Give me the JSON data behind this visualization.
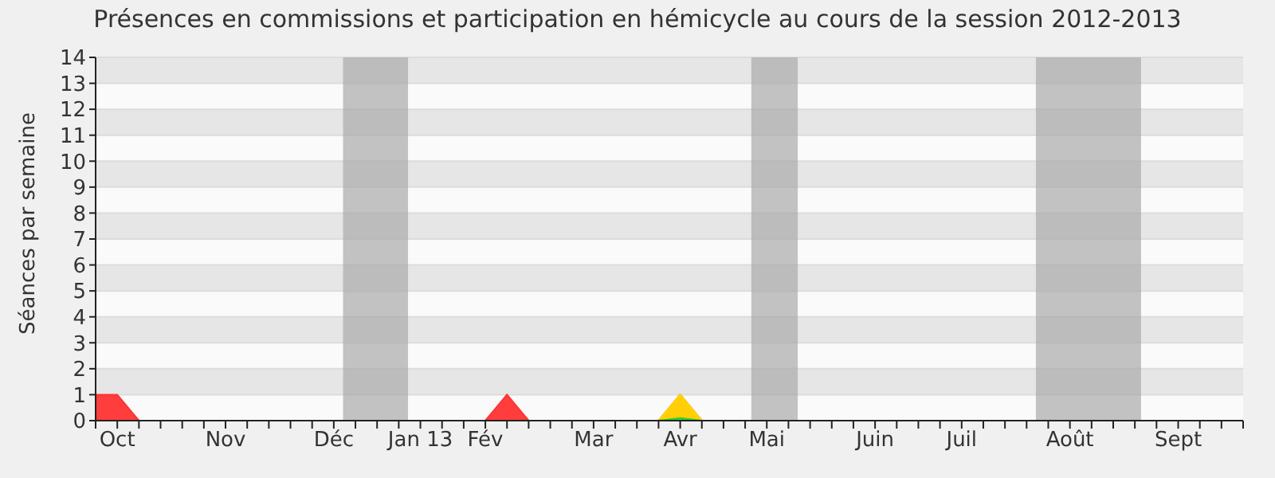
{
  "chart_data": {
    "type": "area",
    "title": "Présences en commissions et participation en hémicycle au cours de la session 2012-2013",
    "ylabel": "Séances par semaine",
    "x": [
      "2012-09-24",
      "2012-10-01",
      "2012-10-08",
      "2012-10-15",
      "2012-10-22",
      "2012-10-29",
      "2012-11-05",
      "2012-11-12",
      "2012-11-19",
      "2012-11-26",
      "2012-12-03",
      "2012-12-10",
      "2012-12-17",
      "2012-12-24",
      "2012-12-31",
      "2013-01-07",
      "2013-01-14",
      "2013-01-21",
      "2013-01-28",
      "2013-02-04",
      "2013-02-11",
      "2013-02-18",
      "2013-02-25",
      "2013-03-04",
      "2013-03-11",
      "2013-03-18",
      "2013-03-25",
      "2013-04-01",
      "2013-04-08",
      "2013-04-15",
      "2013-04-22",
      "2013-04-29",
      "2013-05-06",
      "2013-05-13",
      "2013-05-20",
      "2013-05-27",
      "2013-06-03",
      "2013-06-10",
      "2013-06-17",
      "2013-06-24",
      "2013-07-01",
      "2013-07-08",
      "2013-07-15",
      "2013-07-22",
      "2013-07-29",
      "2013-08-05",
      "2013-08-12",
      "2013-08-19",
      "2013-08-26",
      "2013-09-02",
      "2013-09-09",
      "2013-09-16",
      "2013-09-23",
      "2013-09-30"
    ],
    "series": [
      {
        "color": "#ff3333",
        "values": [
          1,
          1,
          0,
          0,
          0,
          0,
          0,
          0,
          0,
          0,
          0,
          0,
          0,
          0,
          0,
          0,
          0,
          0,
          0,
          1,
          0,
          0,
          0,
          0,
          0,
          0,
          0,
          1,
          0,
          0,
          0,
          0,
          0,
          0,
          0,
          0,
          0,
          0,
          0,
          0,
          0,
          0,
          0,
          0,
          0,
          0,
          0,
          0,
          0,
          0,
          0,
          0,
          0,
          0
        ]
      },
      {
        "color": "#ffd700",
        "values": [
          null,
          null,
          null,
          null,
          null,
          null,
          null,
          null,
          null,
          null,
          null,
          null,
          null,
          null,
          null,
          null,
          null,
          null,
          null,
          null,
          null,
          null,
          null,
          null,
          null,
          null,
          0,
          1,
          0,
          null,
          null,
          null,
          null,
          null,
          null,
          null,
          null,
          null,
          null,
          null,
          null,
          null,
          null,
          null,
          null,
          null,
          null,
          null,
          null,
          null,
          null,
          null,
          null,
          null
        ]
      },
      {
        "color": "#33cc33",
        "values": [
          null,
          null,
          null,
          null,
          null,
          null,
          null,
          null,
          null,
          null,
          null,
          null,
          null,
          null,
          null,
          null,
          null,
          null,
          null,
          null,
          null,
          null,
          null,
          null,
          null,
          null,
          0,
          0.1,
          0,
          null,
          null,
          null,
          null,
          null,
          null,
          null,
          null,
          null,
          null,
          null,
          null,
          null,
          null,
          null,
          null,
          null,
          null,
          null,
          null,
          null,
          null,
          null,
          null,
          null
        ]
      }
    ],
    "xlim": [
      "2012-09-24",
      "2013-09-30"
    ],
    "xticks": [
      {
        "value": "2012-09-24",
        "label": null
      },
      {
        "value": "2012-10-01",
        "label": "Oct"
      },
      {
        "value": "2012-10-08",
        "label": null
      },
      {
        "value": "2012-10-15",
        "label": null
      },
      {
        "value": "2012-10-22",
        "label": null
      },
      {
        "value": "2012-10-29",
        "label": null
      },
      {
        "value": "2012-11-05",
        "label": "Nov"
      },
      {
        "value": "2012-11-12",
        "label": null
      },
      {
        "value": "2012-11-19",
        "label": null
      },
      {
        "value": "2012-11-26",
        "label": null
      },
      {
        "value": "2012-12-03",
        "label": null
      },
      {
        "value": "2012-12-10",
        "label": "Déc"
      },
      {
        "value": "2012-12-17",
        "label": null
      },
      {
        "value": "2012-12-24",
        "label": null
      },
      {
        "value": "2012-12-31",
        "label": null
      },
      {
        "value": "2013-01-07",
        "label": "Jan 13"
      },
      {
        "value": "2013-01-14",
        "label": null
      },
      {
        "value": "2013-01-21",
        "label": null
      },
      {
        "value": "2013-01-28",
        "label": "Fév"
      },
      {
        "value": "2013-02-04",
        "label": null
      },
      {
        "value": "2013-02-11",
        "label": null
      },
      {
        "value": "2013-02-18",
        "label": null
      },
      {
        "value": "2013-02-25",
        "label": null
      },
      {
        "value": "2013-03-04",
        "label": "Mar"
      },
      {
        "value": "2013-03-11",
        "label": null
      },
      {
        "value": "2013-03-18",
        "label": null
      },
      {
        "value": "2013-03-25",
        "label": null
      },
      {
        "value": "2013-04-01",
        "label": "Avr"
      },
      {
        "value": "2013-04-08",
        "label": null
      },
      {
        "value": "2013-04-15",
        "label": null
      },
      {
        "value": "2013-04-22",
        "label": null
      },
      {
        "value": "2013-04-29",
        "label": "Mai"
      },
      {
        "value": "2013-05-06",
        "label": null
      },
      {
        "value": "2013-05-13",
        "label": null
      },
      {
        "value": "2013-05-20",
        "label": null
      },
      {
        "value": "2013-05-27",
        "label": null
      },
      {
        "value": "2013-06-03",
        "label": "Juin"
      },
      {
        "value": "2013-06-10",
        "label": null
      },
      {
        "value": "2013-06-17",
        "label": null
      },
      {
        "value": "2013-06-24",
        "label": null
      },
      {
        "value": "2013-07-01",
        "label": "Juil"
      },
      {
        "value": "2013-07-08",
        "label": null
      },
      {
        "value": "2013-07-15",
        "label": null
      },
      {
        "value": "2013-07-22",
        "label": null
      },
      {
        "value": "2013-07-29",
        "label": null
      },
      {
        "value": "2013-08-05",
        "label": "Août"
      },
      {
        "value": "2013-08-12",
        "label": null
      },
      {
        "value": "2013-08-19",
        "label": null
      },
      {
        "value": "2013-08-26",
        "label": null
      },
      {
        "value": "2013-09-02",
        "label": null
      },
      {
        "value": "2013-09-09",
        "label": "Sept"
      },
      {
        "value": "2013-09-16",
        "label": null
      },
      {
        "value": "2013-09-23",
        "label": null
      },
      {
        "value": "2013-09-30",
        "label": null
      }
    ],
    "ylim": [
      0,
      14
    ],
    "yticks": [
      0,
      1,
      2,
      3,
      4,
      5,
      6,
      7,
      8,
      9,
      10,
      11,
      12,
      13,
      14
    ],
    "grid": "y",
    "bands": [
      {
        "axis": "x",
        "from": "2012-12-13",
        "to": "2013-01-03",
        "color": "#aaaaaa"
      },
      {
        "axis": "x",
        "from": "2013-04-24",
        "to": "2013-05-09",
        "color": "#aaaaaa"
      },
      {
        "axis": "x",
        "from": "2013-07-25",
        "to": "2013-08-28",
        "color": "#aaaaaa"
      }
    ]
  }
}
